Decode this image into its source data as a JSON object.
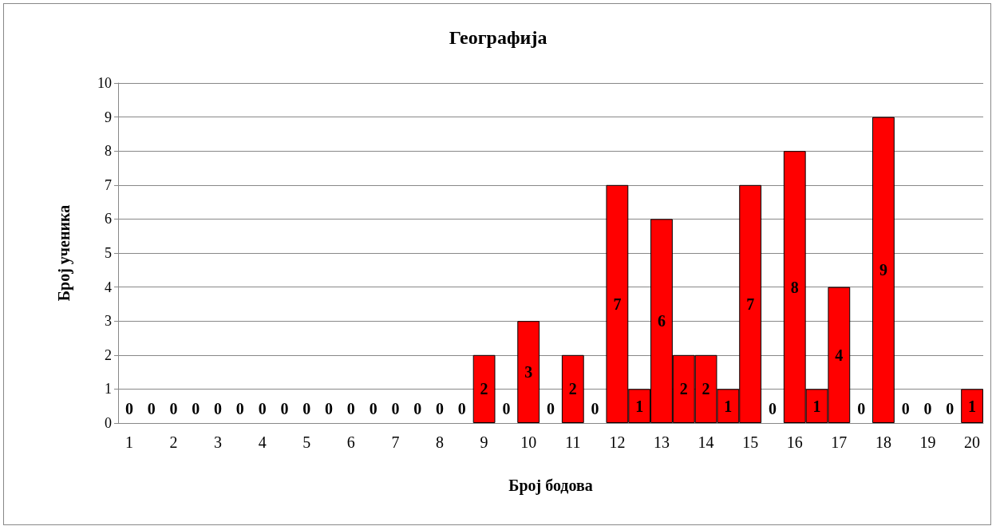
{
  "chart_data": {
    "type": "bar",
    "title": "Географија",
    "xlabel": "Број бодова",
    "ylabel": "Број ученика",
    "categories": [
      "1",
      null,
      "2",
      null,
      "3",
      null,
      "4",
      null,
      "5",
      null,
      "6",
      null,
      "7",
      null,
      "8",
      null,
      "9",
      null,
      "10",
      null,
      "11",
      null,
      "12",
      null,
      "13",
      null,
      "14",
      null,
      "15",
      null,
      "16",
      null,
      "17",
      null,
      "18",
      null,
      "19",
      null,
      "20"
    ],
    "values": [
      0,
      0,
      0,
      0,
      0,
      0,
      0,
      0,
      0,
      0,
      0,
      0,
      0,
      0,
      0,
      0,
      2,
      0,
      3,
      0,
      2,
      0,
      7,
      1,
      6,
      2,
      2,
      1,
      7,
      0,
      8,
      1,
      4,
      0,
      9,
      0,
      0,
      0,
      1
    ],
    "color": "#ff0000",
    "ylim": [
      0,
      10
    ],
    "yticks": [
      0,
      1,
      2,
      3,
      4,
      5,
      6,
      7,
      8,
      9,
      10
    ],
    "grid": "y",
    "data_labels": true
  }
}
